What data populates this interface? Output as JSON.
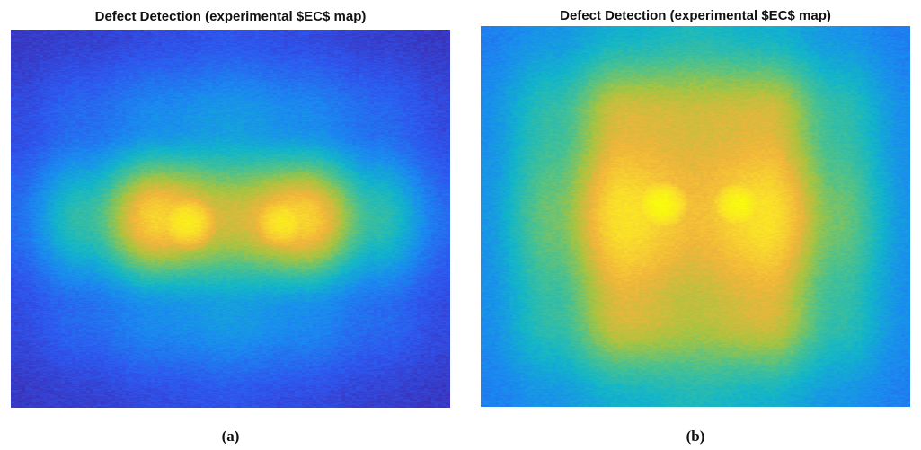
{
  "chart_data": [
    {
      "type": "heatmap",
      "panel": "a",
      "title": "Defect Detection (experimental $EC$ map)",
      "caption": "(a)",
      "colormap": "parula",
      "colormap_stops": [
        "#3e26a8",
        "#2f55ee",
        "#1a8bf0",
        "#12b6c9",
        "#4cc28d",
        "#a8c440",
        "#f1b53b",
        "#fadd2c",
        "#f9fb0e"
      ],
      "colorbar": false,
      "axes_visible": false,
      "value_range": [
        0,
        1
      ],
      "grid_shape": [
        5,
        7
      ],
      "values": [
        [
          0.05,
          0.07,
          0.1,
          0.12,
          0.1,
          0.07,
          0.05
        ],
        [
          0.1,
          0.18,
          0.26,
          0.3,
          0.26,
          0.18,
          0.1
        ],
        [
          0.18,
          0.45,
          0.85,
          0.7,
          0.85,
          0.45,
          0.18
        ],
        [
          0.1,
          0.18,
          0.26,
          0.3,
          0.26,
          0.18,
          0.1
        ],
        [
          0.05,
          0.07,
          0.1,
          0.12,
          0.1,
          0.07,
          0.05
        ]
      ],
      "peaks": [
        {
          "x": 0.4,
          "y": 0.51,
          "value": 0.86
        },
        {
          "x": 0.62,
          "y": 0.51,
          "value": 0.84
        }
      ]
    },
    {
      "type": "heatmap",
      "panel": "b",
      "title": "Defect Detection (experimental $EC$ map)",
      "caption": "(b)",
      "colormap": "parula",
      "colormap_stops": [
        "#3e26a8",
        "#2f55ee",
        "#1a8bf0",
        "#12b6c9",
        "#4cc28d",
        "#a8c440",
        "#f1b53b",
        "#fadd2c",
        "#f9fb0e"
      ],
      "colorbar": false,
      "axes_visible": false,
      "value_range": [
        0,
        1
      ],
      "grid_shape": [
        5,
        7
      ],
      "values": [
        [
          0.22,
          0.28,
          0.36,
          0.4,
          0.36,
          0.28,
          0.22
        ],
        [
          0.26,
          0.45,
          0.72,
          0.7,
          0.72,
          0.45,
          0.26
        ],
        [
          0.28,
          0.55,
          0.9,
          0.78,
          0.9,
          0.55,
          0.28
        ],
        [
          0.26,
          0.45,
          0.72,
          0.66,
          0.72,
          0.45,
          0.26
        ],
        [
          0.22,
          0.28,
          0.36,
          0.4,
          0.36,
          0.28,
          0.22
        ]
      ],
      "peaks": [
        {
          "x": 0.42,
          "y": 0.47,
          "value": 0.92
        },
        {
          "x": 0.6,
          "y": 0.47,
          "value": 0.9
        }
      ]
    }
  ]
}
